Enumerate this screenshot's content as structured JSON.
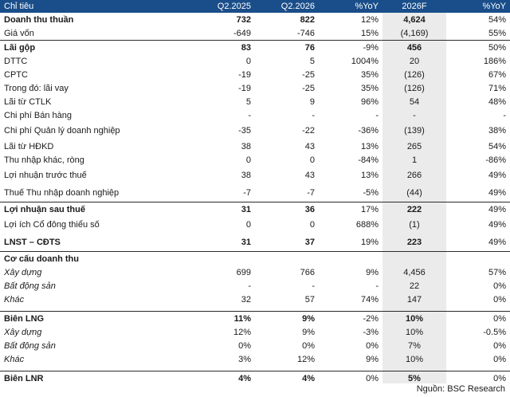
{
  "header": [
    "Chỉ tiêu",
    "Q2.2025",
    "Q2.2026",
    "%YoY",
    "2026F",
    "%YoY"
  ],
  "rows": [
    {
      "cells": [
        "Doanh thu thuần",
        "732",
        "822",
        "12%",
        "4,624",
        "54%"
      ],
      "bold": true,
      "bold_cols": [
        0,
        1,
        2,
        4
      ],
      "sep": false,
      "italic": false
    },
    {
      "cells": [
        "Giá vốn",
        "-649",
        "-746",
        "15%",
        "(4,169)",
        "55%"
      ],
      "bold": false,
      "sep": false,
      "italic": false
    },
    {
      "cells": [
        "Lãi gộp",
        "83",
        "76",
        "-9%",
        "456",
        "50%"
      ],
      "bold": true,
      "bold_cols": [
        0,
        1,
        2,
        4
      ],
      "sep": true,
      "italic": false
    },
    {
      "cells": [
        "DTTC",
        "0",
        "5",
        "1004%",
        "20",
        "186%"
      ],
      "bold": false,
      "sep": false,
      "italic": false
    },
    {
      "cells": [
        "CPTC",
        "-19",
        "-25",
        "35%",
        "(126)",
        "67%"
      ],
      "bold": false,
      "sep": false,
      "italic": false
    },
    {
      "cells": [
        "Trong đó: lãi vay",
        "-19",
        "-25",
        "35%",
        "(126)",
        "71%"
      ],
      "bold": false,
      "sep": false,
      "italic": false
    },
    {
      "cells": [
        "Lãi từ CTLK",
        "5",
        "9",
        "96%",
        "54",
        "48%"
      ],
      "bold": false,
      "sep": false,
      "italic": false
    },
    {
      "cells": [
        "Chi phí Bán hàng",
        "-",
        "-",
        "-",
        "-",
        "-"
      ],
      "bold": false,
      "sep": false,
      "italic": false
    },
    {
      "cells": [
        "Chi phí Quản lý doanh nghiệp",
        "-35",
        "-22",
        "-36%",
        "(139)",
        "38%"
      ],
      "bold": false,
      "sep": false,
      "italic": false,
      "tall": true
    },
    {
      "cells": [
        "Lãi từ HĐKD",
        "38",
        "43",
        "13%",
        "265",
        "54%"
      ],
      "bold": false,
      "sep": false,
      "italic": false
    },
    {
      "cells": [
        "Thu nhập khác, ròng",
        "0",
        "0",
        "-84%",
        "1",
        "-86%"
      ],
      "bold": false,
      "sep": false,
      "italic": false
    },
    {
      "cells": [
        "Lợi nhuận trước thuế",
        "38",
        "43",
        "13%",
        "266",
        "49%"
      ],
      "bold": false,
      "sep": false,
      "italic": false,
      "tall": true
    },
    {
      "cells": [
        "Thuế Thu nhập doanh nghiệp",
        "-7",
        "-7",
        "-5%",
        "(44)",
        "49%"
      ],
      "bold": false,
      "sep": false,
      "italic": false,
      "tall": true
    },
    {
      "cells": [
        "Lợi nhuận sau thuế",
        "31",
        "36",
        "17%",
        "222",
        "49%"
      ],
      "bold": true,
      "bold_cols": [
        0,
        1,
        2,
        4
      ],
      "sep": true,
      "italic": false
    },
    {
      "cells": [
        "Lợi ích Cổ đông thiểu số",
        "0",
        "0",
        "688%",
        "(1)",
        "49%"
      ],
      "bold": false,
      "sep": false,
      "italic": false,
      "tall": true
    },
    {
      "cells": [
        "LNST – CĐTS",
        "31",
        "37",
        "19%",
        "223",
        "49%"
      ],
      "bold": true,
      "bold_cols": [
        0,
        1,
        2,
        4
      ],
      "sep": false,
      "italic": false,
      "tall": true
    },
    {
      "cells": [
        "Cơ cấu doanh thu",
        "",
        "",
        "",
        "",
        ""
      ],
      "bold": true,
      "bold_cols": [
        0
      ],
      "sep": true,
      "italic": false
    },
    {
      "cells": [
        "Xây dựng",
        "699",
        "766",
        "9%",
        "4,456",
        "57%"
      ],
      "bold": false,
      "sep": false,
      "italic": true
    },
    {
      "cells": [
        "Bất động sản",
        "-",
        "-",
        "-",
        "22",
        "0%"
      ],
      "bold": false,
      "sep": false,
      "italic": true
    },
    {
      "cells": [
        "Khác",
        "32",
        "57",
        "74%",
        "147",
        "0%"
      ],
      "bold": false,
      "sep": false,
      "italic": true
    },
    {
      "cells": [
        "Biên LNG",
        "11%",
        "9%",
        "-2%",
        "10%",
        "0%"
      ],
      "bold": true,
      "bold_cols": [
        0,
        1,
        2,
        4
      ],
      "sep": true,
      "italic": false,
      "pre_gap": true
    },
    {
      "cells": [
        "Xây dựng",
        "12%",
        "9%",
        "-3%",
        "10%",
        "-0.5%"
      ],
      "bold": false,
      "sep": false,
      "italic": true
    },
    {
      "cells": [
        "Bất động sản",
        "0%",
        "0%",
        "0%",
        "7%",
        "0%"
      ],
      "bold": false,
      "sep": false,
      "italic": true
    },
    {
      "cells": [
        "Khác",
        "3%",
        "12%",
        "9%",
        "10%",
        "0%"
      ],
      "bold": false,
      "sep": false,
      "italic": true
    },
    {
      "cells": [
        "Biên LNR",
        "4%",
        "4%",
        "0%",
        "5%",
        "0%"
      ],
      "bold": true,
      "bold_cols": [
        0,
        1,
        2,
        4
      ],
      "sep": true,
      "italic": false,
      "pre_gap": true
    }
  ],
  "source": "Nguồn: BSC Research"
}
